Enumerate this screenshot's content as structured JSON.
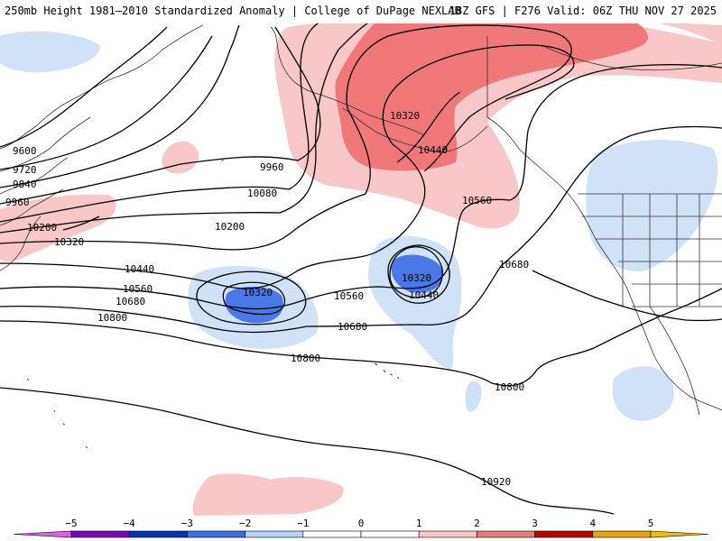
{
  "header": {
    "left": "250mb Height 1981–2010 Standardized Anomaly | College of DuPage NEXLAB",
    "right": "18Z GFS | F276 Valid: 06Z THU NOV 27 2025"
  },
  "legend": {
    "ticks": [
      "−5",
      "−4",
      "−3",
      "−2",
      "−1",
      "0",
      "1",
      "2",
      "3",
      "4",
      "5"
    ],
    "colors": {
      "neg5": "#e060e0",
      "neg4": "#8000c0",
      "neg3": "#0030c0",
      "neg2": "#3c6ee8",
      "neg1": "#b4d4f8",
      "zero": "#ffffff",
      "pos1": "#f8c8c8",
      "pos2": "#f07878",
      "pos3": "#c00000",
      "pos4": "#f0a000",
      "pos5": "#f0c000"
    }
  },
  "contours": {
    "l9600": "9600",
    "l9720": "9720",
    "l9840": "9840",
    "l9960a": "9960",
    "l9960b": "9960",
    "l10080": "10080",
    "l10200a": "10200",
    "l10200b": "10200",
    "l10320a": "10320",
    "l10320b": "10320",
    "l10320c": "10320",
    "l10320d": "10320",
    "l10440a": "10440",
    "l10440b": "10440",
    "l10440c": "10440",
    "l10560a": "10560",
    "l10560b": "10560",
    "l10560c": "10560",
    "l10680a": "10680",
    "l10680b": "10680",
    "l10680c": "10680",
    "l10800a": "10800",
    "l10800b": "10800",
    "l10800c": "10800",
    "l10920": "10920"
  }
}
